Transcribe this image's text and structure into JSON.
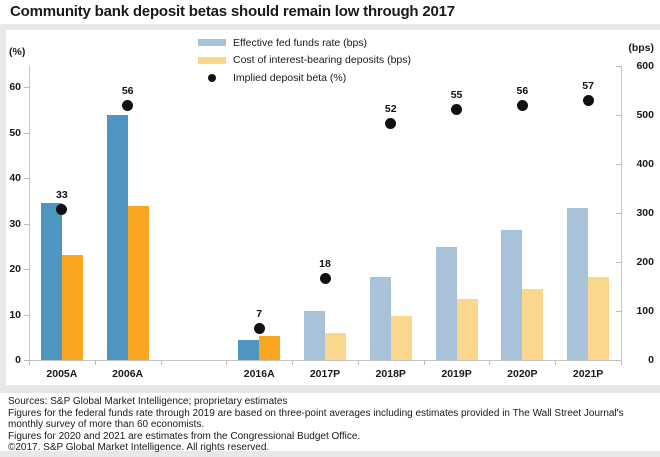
{
  "title": "Community bank deposit betas should remain low through 2017",
  "colors": {
    "fed_funds_actual": "#4e95bf",
    "fed_funds_projected": "#a8c3d9",
    "deposits_actual": "#faa620",
    "deposits_projected": "#fbd68d",
    "beta_dot": "#111111",
    "axis_line": "#c4c4c4",
    "page_background": "#e8e8e8",
    "panel_background": "#ffffff",
    "text": "#1a1a1a"
  },
  "legend": {
    "items": [
      {
        "label": "Effective fed funds rate (bps)",
        "marker": "bar",
        "color": "#a8c3d9"
      },
      {
        "label": "Cost of interest-bearing deposits (bps)",
        "marker": "bar",
        "color": "#fbd68d"
      },
      {
        "label": "Implied deposit beta (%)",
        "marker": "dot",
        "color": "#111111"
      }
    ]
  },
  "chart_data": {
    "type": "bar",
    "title": "Community bank deposit betas should remain low through 2017",
    "categories": [
      "2005A",
      "2006A",
      "",
      "2016A",
      "2017P",
      "2018P",
      "2019P",
      "2020P",
      "2021P"
    ],
    "is_actual": [
      true,
      true,
      null,
      true,
      false,
      false,
      false,
      false,
      false
    ],
    "series": [
      {
        "name": "Effective fed funds rate (bps)",
        "type": "bar",
        "axis": "right",
        "values": [
          320,
          500,
          null,
          40,
          100,
          170,
          230,
          265,
          310
        ]
      },
      {
        "name": "Cost of interest-bearing deposits (bps)",
        "type": "bar",
        "axis": "right",
        "values": [
          215,
          315,
          null,
          50,
          55,
          90,
          125,
          145,
          170
        ]
      },
      {
        "name": "Implied deposit beta (%)",
        "type": "scatter",
        "axis": "left",
        "values": [
          33,
          56,
          null,
          7,
          18,
          52,
          55,
          56,
          57
        ],
        "data_labels": true
      }
    ],
    "left_axis": {
      "label": "(%)",
      "min": 0,
      "max": 60,
      "ticks": [
        0,
        10,
        20,
        30,
        40,
        50,
        60
      ]
    },
    "right_axis": {
      "label": "(bps)",
      "min": 0,
      "max": 600,
      "ticks": [
        0,
        100,
        200,
        300,
        400,
        500,
        600
      ]
    },
    "legend_position": "top",
    "grid": false
  },
  "footer": {
    "lines": [
      "Sources: S&P Global Market Intelligence; proprietary estimates",
      "Figures for the federal funds rate through 2019 are based on three-point averages including estimates provided in The Wall Street Journal's",
      "monthly survey of more than 60 economists.",
      "Figures for 2020 and 2021 are estimates from the Congressional Budget Office.",
      "©2017. S&P Global Market Intelligence. All rights reserved."
    ]
  }
}
